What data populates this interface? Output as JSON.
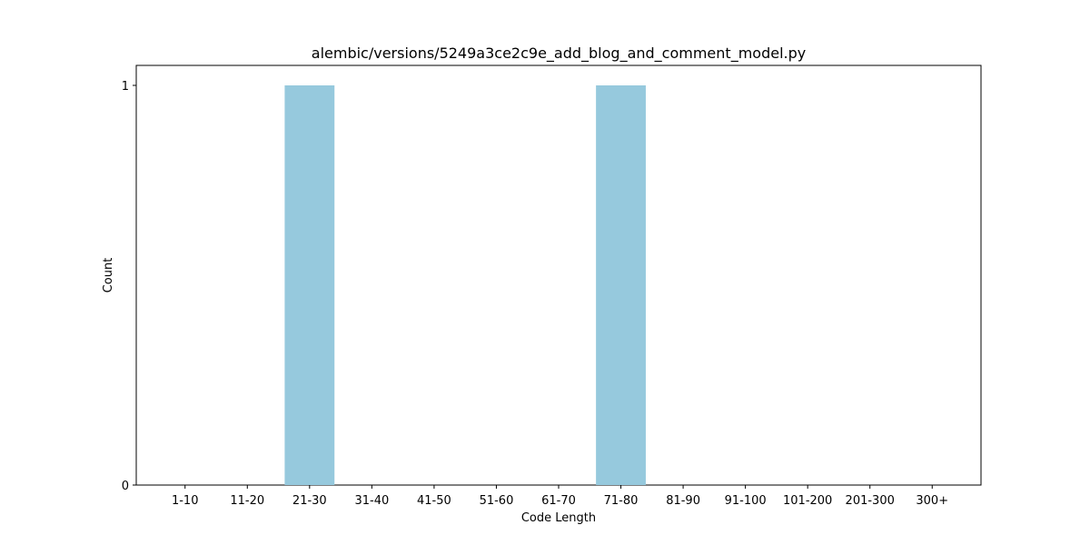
{
  "chart_data": {
    "type": "bar",
    "title": "alembic/versions/5249a3ce2c9e_add_blog_and_comment_model.py",
    "xlabel": "Code Length",
    "ylabel": "Count",
    "categories": [
      "1-10",
      "11-20",
      "21-30",
      "31-40",
      "41-50",
      "51-60",
      "61-70",
      "71-80",
      "81-90",
      "91-100",
      "101-200",
      "201-300",
      "300+"
    ],
    "values": [
      0,
      0,
      1,
      0,
      0,
      0,
      0,
      1,
      0,
      0,
      0,
      0,
      0
    ],
    "ylim": [
      0,
      1.05
    ],
    "yticks": [
      0,
      1
    ],
    "grid": false,
    "legend": "none",
    "bar_color": "#96c9dd"
  }
}
